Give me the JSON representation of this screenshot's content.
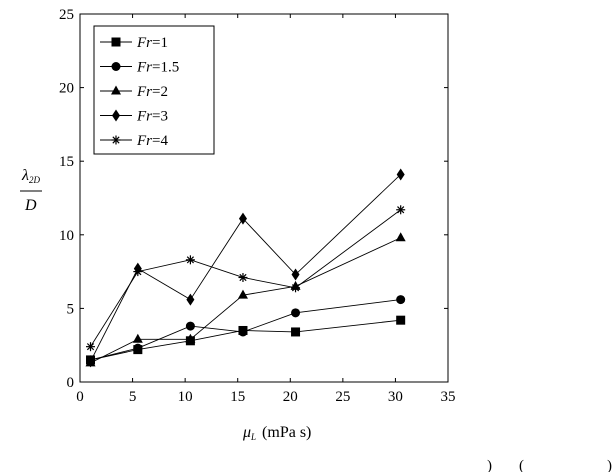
{
  "chart_data": {
    "type": "line",
    "x_tick_labels": [
      "0",
      "5",
      "10",
      "15",
      "20",
      "25",
      "30",
      "35"
    ],
    "y_tick_labels": [
      "0",
      "5",
      "10",
      "15",
      "20",
      "25"
    ],
    "xlim": [
      0,
      35
    ],
    "ylim": [
      0,
      25
    ],
    "grid": false,
    "legend_position": "top-left",
    "ylabel": {
      "numerator": "λ",
      "numerator_sub": "2D",
      "denominator": "D"
    },
    "xlabel": {
      "symbol": "μ",
      "sub": "L",
      "unit": "(mPa s)"
    },
    "series": [
      {
        "name": "Fr=1",
        "var": "Fr",
        "eq": "=",
        "val": "1",
        "marker": "square",
        "x": [
          1,
          5.5,
          10.5,
          15.5,
          20.5,
          30.5
        ],
        "y": [
          1.5,
          2.2,
          2.8,
          3.5,
          3.4,
          4.2
        ]
      },
      {
        "name": "Fr=1.5",
        "var": "Fr",
        "eq": "=",
        "val": "1.5",
        "marker": "circle",
        "x": [
          1,
          5.5,
          10.5,
          15.5,
          20.5,
          30.5
        ],
        "y": [
          1.5,
          2.3,
          3.8,
          3.4,
          4.7,
          5.6
        ]
      },
      {
        "name": "Fr=2",
        "var": "Fr",
        "eq": "=",
        "val": "2",
        "marker": "triangle",
        "x": [
          1,
          5.5,
          10.5,
          15.5,
          20.5,
          30.5
        ],
        "y": [
          1.3,
          2.9,
          2.9,
          5.9,
          6.5,
          9.8
        ]
      },
      {
        "name": "Fr=3",
        "var": "Fr",
        "eq": "=",
        "val": "3",
        "marker": "diamond",
        "x": [
          1,
          5.5,
          10.5,
          15.5,
          20.5,
          30.5
        ],
        "y": [
          1.4,
          7.7,
          5.6,
          11.1,
          7.3,
          14.1
        ]
      },
      {
        "name": "Fr=4",
        "var": "Fr",
        "eq": "=",
        "val": "4",
        "marker": "asterisk",
        "x": [
          1,
          5.5,
          10.5,
          15.5,
          20.5,
          30.5
        ],
        "y": [
          2.4,
          7.5,
          8.3,
          7.1,
          6.4,
          11.7
        ]
      }
    ]
  },
  "footer": {
    "fragment_1": ")",
    "fragment_2": "(",
    "fragment_3": ")"
  }
}
